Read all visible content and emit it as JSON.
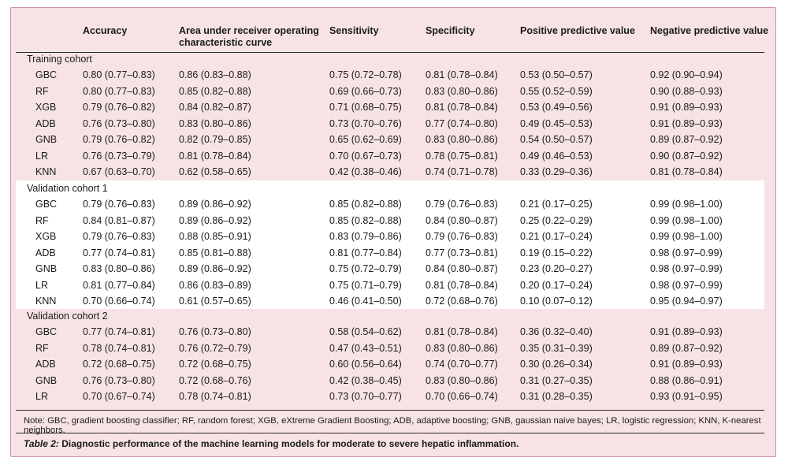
{
  "columns": [
    "Accuracy",
    "Area under receiver operating characteristic curve",
    "Sensitivity",
    "Specificity",
    "Positive predictive value",
    "Negative predictive value"
  ],
  "col_auc_line1": "Area under receiver operating",
  "col_auc_line2": "characteristic curve",
  "sections": [
    {
      "title": "Training cohort",
      "rows": [
        [
          "GBC",
          "0.80 (0.77–0.83)",
          "0.86 (0.83–0.88)",
          "0.75 (0.72–0.78)",
          "0.81 (0.78–0.84)",
          "0.53 (0.50–0.57)",
          "0.92 (0.90–0.94)"
        ],
        [
          "RF",
          "0.80 (0.77–0.83)",
          "0.85 (0.82–0.88)",
          "0.69 (0.66–0.73)",
          "0.83 (0.80–0.86)",
          "0.55 (0.52–0.59)",
          "0.90 (0.88–0.93)"
        ],
        [
          "XGB",
          "0.79 (0.76–0.82)",
          "0.84 (0.82–0.87)",
          "0.71 (0.68–0.75)",
          "0.81 (0.78–0.84)",
          "0.53 (0.49–0.56)",
          "0.91 (0.89–0.93)"
        ],
        [
          "ADB",
          "0.76 (0.73–0.80)",
          "0.83 (0.80–0.86)",
          "0.73 (0.70–0.76)",
          "0.77 (0.74–0.80)",
          "0.49 (0.45–0.53)",
          "0.91 (0.89–0.93)"
        ],
        [
          "GNB",
          "0.79 (0.76–0.82)",
          "0.82 (0.79–0.85)",
          "0.65 (0.62–0.69)",
          "0.83 (0.80–0.86)",
          "0.54 (0.50–0.57)",
          "0.89 (0.87–0.92)"
        ],
        [
          "LR",
          "0.76 (0.73–0.79)",
          "0.81 (0.78–0.84)",
          "0.70 (0.67–0.73)",
          "0.78 (0.75–0.81)",
          "0.49 (0.46–0.53)",
          "0.90 (0.87–0.92)"
        ],
        [
          "KNN",
          "0.67 (0.63–0.70)",
          "0.62 (0.58–0.65)",
          "0.42 (0.38–0.46)",
          "0.74 (0.71–0.78)",
          "0.33 (0.29–0.36)",
          "0.81 (0.78–0.84)"
        ]
      ]
    },
    {
      "title": "Validation cohort 1",
      "rows": [
        [
          "GBC",
          "0.79 (0.76–0.83)",
          "0.89 (0.86–0.92)",
          "0.85 (0.82–0.88)",
          "0.79 (0.76–0.83)",
          "0.21 (0.17–0.25)",
          "0.99 (0.98–1.00)"
        ],
        [
          "RF",
          "0.84 (0.81–0.87)",
          "0.89 (0.86–0.92)",
          "0.85 (0.82–0.88)",
          "0.84 (0.80–0.87)",
          "0.25 (0.22–0.29)",
          "0.99 (0.98–1.00)"
        ],
        [
          "XGB",
          "0.79 (0.76–0.83)",
          "0.88 (0.85–0.91)",
          "0.83 (0.79–0.86)",
          "0.79 (0.76–0.83)",
          "0.21 (0.17–0.24)",
          "0.99 (0.98–1.00)"
        ],
        [
          "ADB",
          "0.77 (0.74–0.81)",
          "0.85 (0.81–0.88)",
          "0.81 (0.77–0.84)",
          "0.77 (0.73–0.81)",
          "0.19 (0.15–0.22)",
          "0.98 (0.97–0.99)"
        ],
        [
          "GNB",
          "0.83 (0.80–0.86)",
          "0.89 (0.86–0.92)",
          "0.75 (0.72–0.79)",
          "0.84 (0.80–0.87)",
          "0.23 (0.20–0.27)",
          "0.98 (0.97–0.99)"
        ],
        [
          "LR",
          "0.81 (0.77–0.84)",
          "0.86 (0.83–0.89)",
          "0.75 (0.71–0.79)",
          "0.81 (0.78–0.84)",
          "0.20 (0.17–0.24)",
          "0.98 (0.97–0.99)"
        ],
        [
          "KNN",
          "0.70 (0.66–0.74)",
          "0.61 (0.57–0.65)",
          "0.46 (0.41–0.50)",
          "0.72 (0.68–0.76)",
          "0.10 (0.07–0.12)",
          "0.95 (0.94–0.97)"
        ]
      ]
    },
    {
      "title": "Validation cohort 2",
      "rows": [
        [
          "GBC",
          "0.77 (0.74–0.81)",
          "0.76 (0.73–0.80)",
          "0.58 (0.54–0.62)",
          "0.81 (0.78–0.84)",
          "0.36 (0.32–0.40)",
          "0.91 (0.89–0.93)"
        ],
        [
          "RF",
          "0.78 (0.74–0.81)",
          "0.76 (0.72–0.79)",
          "0.47 (0.43–0.51)",
          "0.83 (0.80–0.86)",
          "0.35 (0.31–0.39)",
          "0.89 (0.87–0.92)"
        ],
        [
          "ADB",
          "0.72 (0.68–0.75)",
          "0.72 (0.68–0.75)",
          "0.60 (0.56–0.64)",
          "0.74 (0.70–0.77)",
          "0.30 (0.26–0.34)",
          "0.91 (0.89–0.93)"
        ],
        [
          "GNB",
          "0.76 (0.73–0.80)",
          "0.72 (0.68–0.76)",
          "0.42 (0.38–0.45)",
          "0.83 (0.80–0.86)",
          "0.31 (0.27–0.35)",
          "0.88 (0.86–0.91)"
        ],
        [
          "LR",
          "0.70 (0.67–0.74)",
          "0.78 (0.74–0.81)",
          "0.73 (0.70–0.77)",
          "0.70 (0.66–0.74)",
          "0.31 (0.28–0.35)",
          "0.93 (0.91–0.95)"
        ]
      ]
    }
  ],
  "note": "Note: GBC, gradient boosting classifier; RF, random forest; XGB, eXtreme Gradient Boosting; ADB, adaptive boosting; GNB, gaussian naive bayes; LR, logistic regression; KNN, K-nearest neighbors.",
  "caption_label": "Table 2:",
  "caption_text": " Diagnostic performance of the machine learning models for moderate to severe hepatic inflammation.",
  "colors": {
    "background": "#f7e3e5",
    "border": "#c9969c",
    "highlight_band": "#ffffff"
  }
}
